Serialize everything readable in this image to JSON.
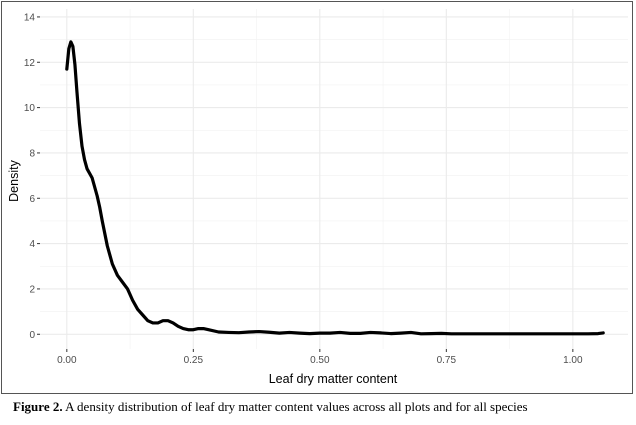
{
  "caption": {
    "label": "Figure 2.",
    "text": " A density distribution of leaf dry matter content values across all plots and for all species"
  },
  "chart_data": {
    "type": "line",
    "title": "",
    "xlabel": "Leaf dry matter content",
    "ylabel": "Density",
    "xlim": [
      -0.053,
      1.109
    ],
    "ylim": [
      -0.65,
      14.35
    ],
    "x_ticks": [
      0.0,
      0.25,
      0.5,
      0.75,
      1.0
    ],
    "x_tick_labels": [
      "0.00",
      "0.25",
      "0.50",
      "0.75",
      "1.00"
    ],
    "y_ticks": [
      0,
      2,
      4,
      6,
      8,
      10,
      12,
      14
    ],
    "y_tick_labels": [
      "0",
      "2",
      "4",
      "6",
      "8",
      "10",
      "12",
      "14"
    ],
    "grid": true,
    "line_color": "#000000",
    "series": [
      {
        "x": [
          0.0,
          0.004,
          0.008,
          0.012,
          0.016,
          0.02,
          0.025,
          0.03,
          0.035,
          0.04,
          0.05,
          0.06,
          0.065,
          0.07,
          0.08,
          0.09,
          0.1,
          0.11,
          0.12,
          0.13,
          0.14,
          0.15,
          0.16,
          0.17,
          0.18,
          0.19,
          0.2,
          0.21,
          0.22,
          0.23,
          0.24,
          0.25,
          0.26,
          0.27,
          0.28,
          0.3,
          0.32,
          0.34,
          0.36,
          0.38,
          0.4,
          0.42,
          0.44,
          0.46,
          0.48,
          0.5,
          0.52,
          0.54,
          0.56,
          0.58,
          0.6,
          0.62,
          0.64,
          0.66,
          0.68,
          0.7,
          0.72,
          0.74,
          0.76,
          0.8,
          0.85,
          0.9,
          0.95,
          1.0,
          1.03,
          1.05,
          1.06
        ],
        "y": [
          11.7,
          12.6,
          12.9,
          12.7,
          11.9,
          10.7,
          9.3,
          8.3,
          7.7,
          7.3,
          6.9,
          6.1,
          5.6,
          5.0,
          3.9,
          3.1,
          2.6,
          2.3,
          2.0,
          1.5,
          1.1,
          0.85,
          0.6,
          0.5,
          0.5,
          0.6,
          0.6,
          0.5,
          0.35,
          0.25,
          0.2,
          0.2,
          0.25,
          0.25,
          0.2,
          0.1,
          0.08,
          0.07,
          0.1,
          0.12,
          0.09,
          0.05,
          0.08,
          0.05,
          0.03,
          0.05,
          0.05,
          0.08,
          0.04,
          0.04,
          0.08,
          0.06,
          0.03,
          0.05,
          0.08,
          0.02,
          0.03,
          0.04,
          0.02,
          0.02,
          0.02,
          0.02,
          0.02,
          0.02,
          0.02,
          0.03,
          0.06
        ]
      }
    ]
  }
}
